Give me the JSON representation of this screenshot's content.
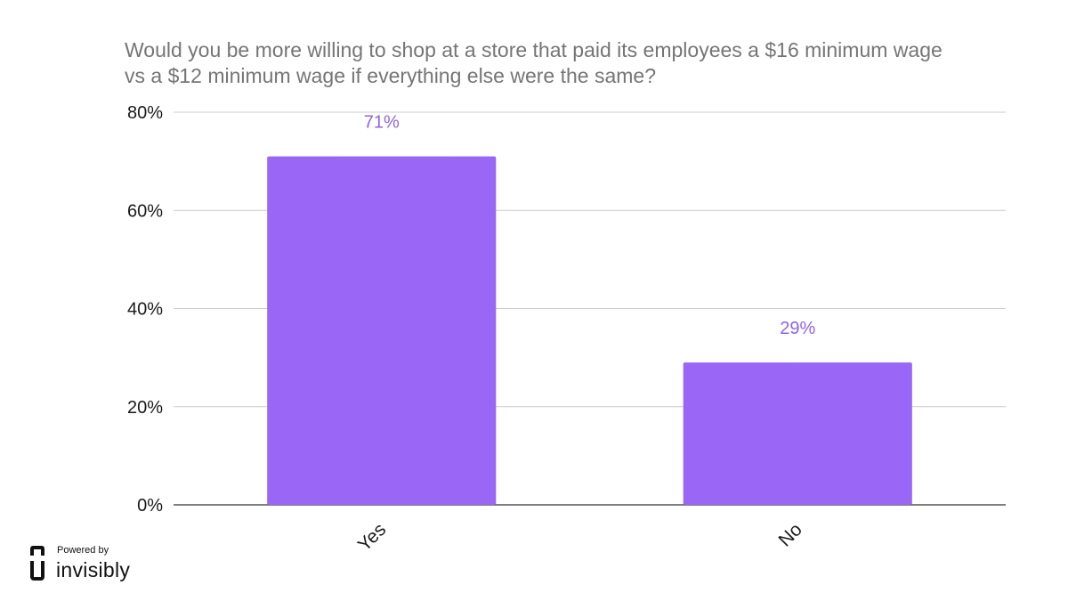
{
  "chart_data": {
    "type": "bar",
    "title_lines": [
      "Would you be more willing to shop at a store that paid its employees a $16 minimum wage",
      "vs a $12 minimum wage if everything else were the same?"
    ],
    "categories": [
      "Yes",
      "No"
    ],
    "values": [
      71,
      29
    ],
    "data_labels": [
      "71%",
      "29%"
    ],
    "ylim": [
      0,
      80
    ],
    "y_ticks": [
      0,
      20,
      40,
      60,
      80
    ],
    "y_tick_labels": [
      "0%",
      "20%",
      "40%",
      "60%",
      "80%"
    ],
    "xlabel": "",
    "ylabel": "",
    "grid": true,
    "bar_color": "#9966f5",
    "label_color": "#8f63e8"
  },
  "branding": {
    "powered_by": "Powered by",
    "name": "invisibly",
    "icon": "invisibly-logo-icon"
  }
}
